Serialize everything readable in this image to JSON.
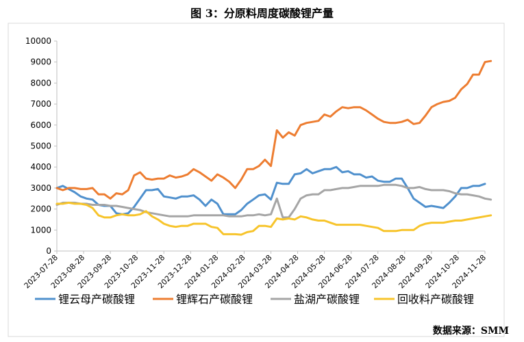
{
  "title": "图 3：分原料周度碳酸锂产量",
  "source": "数据来源：SMM",
  "chart_data": {
    "type": "line",
    "title": "图 3：分原料周度碳酸锂产量",
    "xlabel": "",
    "ylabel": "",
    "ylim": [
      0,
      10000
    ],
    "yticks": [
      0,
      1000,
      2000,
      3000,
      4000,
      5000,
      6000,
      7000,
      8000,
      9000,
      10000
    ],
    "x_start": "2023-07-28",
    "x_tick_labels": [
      "2023-07-28",
      "2023-08-28",
      "2023-09-28",
      "2023-10-28",
      "2023-11-28",
      "2023-12-28",
      "2024-01-28",
      "2024-02-28",
      "2024-03-28",
      "2024-04-28",
      "2024-05-28",
      "2024-06-28",
      "2024-07-28",
      "2024-08-28",
      "2024-09-28",
      "2024-10-28",
      "2024-11-28"
    ],
    "grid": false,
    "legend_position": "bottom",
    "series": [
      {
        "name": "锂云母产碳酸锂",
        "color": "#4f90cd",
        "values": [
          3000,
          3100,
          2950,
          2800,
          2600,
          2500,
          2450,
          2200,
          2150,
          2150,
          1800,
          1750,
          1800,
          2100,
          2500,
          2900,
          2900,
          2950,
          2600,
          2550,
          2500,
          2600,
          2600,
          2650,
          2450,
          2150,
          2450,
          2250,
          1750,
          1750,
          1750,
          1950,
          2250,
          2450,
          2650,
          2700,
          2450,
          3250,
          3200,
          3200,
          3650,
          3700,
          3900,
          3700,
          3800,
          3900,
          3900,
          4000,
          3750,
          3800,
          3650,
          3650,
          3500,
          3550,
          3350,
          3300,
          3300,
          3450,
          3450,
          3000,
          2500,
          2300,
          2100,
          2150,
          2100,
          2050,
          2300,
          2600,
          3000,
          3000,
          3100,
          3100,
          3200
        ]
      },
      {
        "name": "锂辉石产碳酸锂",
        "color": "#ed7d31",
        "values": [
          3000,
          2900,
          3000,
          3000,
          2950,
          2950,
          3000,
          2700,
          2700,
          2500,
          2750,
          2700,
          2900,
          3600,
          3750,
          3450,
          3400,
          3450,
          3450,
          3600,
          3500,
          3550,
          3650,
          3900,
          3750,
          3550,
          3350,
          3650,
          3500,
          3300,
          3000,
          3400,
          3900,
          3900,
          4050,
          4350,
          4050,
          5750,
          5400,
          5650,
          5500,
          6000,
          6100,
          6150,
          6200,
          6500,
          6400,
          6650,
          6850,
          6800,
          6850,
          6850,
          6700,
          6500,
          6300,
          6150,
          6100,
          6100,
          6150,
          6250,
          6050,
          6100,
          6450,
          6850,
          7000,
          7100,
          7150,
          7300,
          7700,
          7950,
          8400,
          8400,
          9000,
          9050
        ]
      },
      {
        "name": "盐湖产碳酸锂",
        "color": "#a5a5a5",
        "values": [
          2200,
          2300,
          2300,
          2300,
          2250,
          2250,
          2200,
          2200,
          2200,
          2150,
          2150,
          2100,
          2050,
          2000,
          1950,
          1850,
          1800,
          1750,
          1700,
          1650,
          1650,
          1650,
          1650,
          1700,
          1700,
          1700,
          1700,
          1700,
          1700,
          1650,
          1650,
          1650,
          1700,
          1700,
          1750,
          1700,
          1750,
          2500,
          1600,
          1600,
          2000,
          2500,
          2650,
          2700,
          2700,
          2900,
          2900,
          2950,
          3000,
          3000,
          3050,
          3100,
          3100,
          3100,
          3100,
          3150,
          3150,
          3150,
          3100,
          3000,
          3000,
          3050,
          2950,
          2900,
          2900,
          2900,
          2850,
          2750,
          2700,
          2700,
          2650,
          2600,
          2500,
          2450
        ]
      },
      {
        "name": "回收料产碳酸锂",
        "color": "#f7c42b",
        "values": [
          2250,
          2250,
          2300,
          2250,
          2250,
          2200,
          2050,
          1700,
          1600,
          1600,
          1700,
          1750,
          1700,
          1700,
          1750,
          1900,
          1650,
          1500,
          1300,
          1200,
          1150,
          1200,
          1200,
          1300,
          1300,
          1300,
          1150,
          1100,
          800,
          800,
          800,
          780,
          900,
          950,
          1200,
          1200,
          1150,
          1550,
          1500,
          1550,
          1500,
          1650,
          1600,
          1500,
          1450,
          1450,
          1350,
          1250,
          1250,
          1250,
          1250,
          1250,
          1200,
          1150,
          1100,
          950,
          950,
          950,
          1000,
          1000,
          1000,
          1200,
          1300,
          1350,
          1350,
          1350,
          1400,
          1450,
          1450,
          1500,
          1550,
          1600,
          1650,
          1700
        ]
      }
    ]
  }
}
